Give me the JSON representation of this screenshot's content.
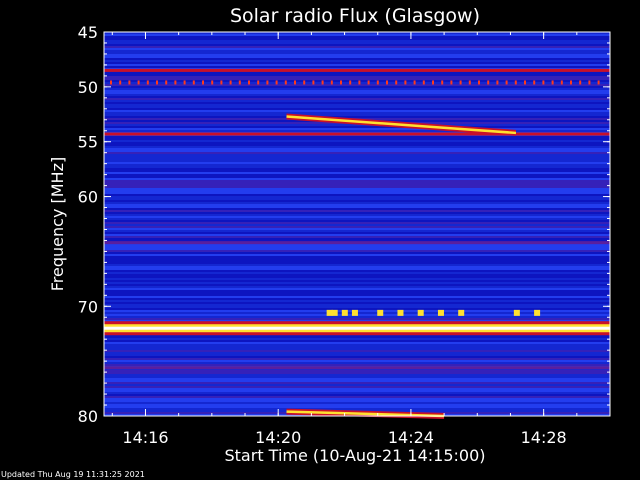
{
  "chart_data": {
    "type": "heatmap",
    "title": "Solar radio Flux (Glasgow)",
    "xlabel": "Start Time (10-Aug-21 14:15:00)",
    "ylabel": "Frequency [MHz]",
    "x_range_minutes": [
      "14:14:45",
      "14:30:00"
    ],
    "ylim": [
      45,
      80
    ],
    "x_ticks": [
      "14:16",
      "14:20",
      "14:24",
      "14:28"
    ],
    "y_ticks": [
      45,
      50,
      55,
      60,
      70,
      80
    ],
    "colormap": [
      "#0000a0",
      "#1b34e6",
      "#5a1f9e",
      "#c8102a",
      "#ff5a00",
      "#ffe030",
      "#ffffff"
    ],
    "features": [
      {
        "name": "constant-band",
        "freq_mhz": 48.5,
        "intensity": 0.55
      },
      {
        "name": "constant-band",
        "freq_mhz": 54.3,
        "intensity": 0.45
      },
      {
        "name": "constant-band",
        "freq_mhz": 64.2,
        "intensity": 0.3
      },
      {
        "name": "constant-band",
        "freq_mhz": 72.0,
        "intensity": 1.0
      },
      {
        "name": "constant-band",
        "freq_mhz": 75.6,
        "intensity": 0.35
      },
      {
        "name": "drifting-burst",
        "start": "14:20:15",
        "end": "14:27:10",
        "freq_start_mhz": 52.7,
        "freq_end_mhz": 54.2
      },
      {
        "name": "drifting-burst",
        "start": "14:20:15",
        "end": "14:25:00",
        "freq_start_mhz": 79.6,
        "freq_end_mhz": 80.5
      }
    ]
  },
  "footer": "Updated Thu Aug 19 11:31:25 2021"
}
